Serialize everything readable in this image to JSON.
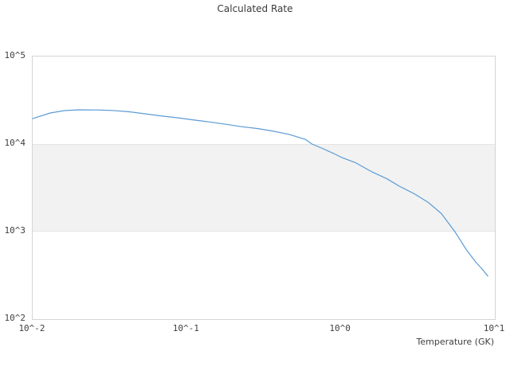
{
  "chart_data": {
    "type": "line",
    "title": "Calculated Rate",
    "xlabel": "Temperature (GK)",
    "ylabel": "",
    "xscale": "log",
    "yscale": "log",
    "xlim": [
      0.01,
      10
    ],
    "ylim": [
      100,
      100000
    ],
    "grid": false,
    "legend": "none",
    "x_ticks": [
      {
        "label": "10^-2",
        "value": 0.01
      },
      {
        "label": "10^-1",
        "value": 0.1
      },
      {
        "label": "10^0",
        "value": 1
      },
      {
        "label": "10^1",
        "value": 10
      }
    ],
    "y_ticks": [
      {
        "label": "10^2",
        "value": 100
      },
      {
        "label": "10^3",
        "value": 1000
      },
      {
        "label": "10^4",
        "value": 10000
      },
      {
        "label": "10^5",
        "value": 100000
      }
    ],
    "highlight_band": {
      "y_min": 1000,
      "y_max": 10000,
      "color": "#f2f2f2"
    },
    "colors": {
      "line": "#5b9bd5",
      "band": "#f2f2f2",
      "band_edge": "#e4e4e4",
      "axis_border": "#d4d4d4",
      "text": "#3f3f3f",
      "title_text": "#3a3a3a",
      "background": "#ffffff"
    },
    "series": [
      {
        "name": "calculated-rate",
        "x": [
          0.01,
          0.013,
          0.016,
          0.02,
          0.026,
          0.033,
          0.042,
          0.053,
          0.068,
          0.086,
          0.11,
          0.14,
          0.18,
          0.22,
          0.29,
          0.36,
          0.46,
          0.59,
          0.65,
          0.75,
          0.9,
          1.0,
          1.25,
          1.6,
          2.0,
          2.4,
          3.0,
          3.7,
          4.5,
          5.5,
          6.5,
          7.5,
          8.3,
          9.0
        ],
        "y": [
          19500,
          22600,
          24100,
          24600,
          24500,
          24200,
          23400,
          22200,
          21000,
          20000,
          18900,
          17900,
          16800,
          15900,
          15000,
          14100,
          12900,
          11300,
          10000,
          9000,
          7800,
          7100,
          6100,
          4800,
          4000,
          3300,
          2700,
          2150,
          1600,
          1000,
          630,
          450,
          370,
          310
        ]
      }
    ]
  }
}
